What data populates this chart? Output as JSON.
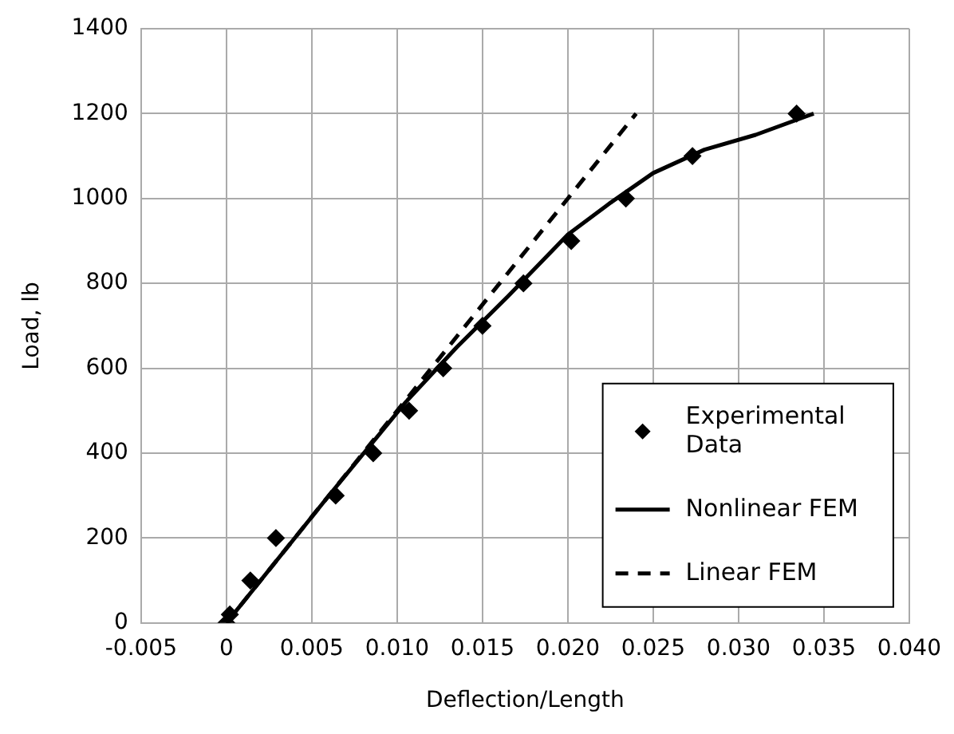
{
  "chart_data": {
    "type": "scatter",
    "xlabel": "Deflection/Length",
    "ylabel": "Load, lb",
    "xlim": [
      -0.005,
      0.04
    ],
    "xticks": [
      {
        "value": -0.005,
        "label": "-0.005"
      },
      {
        "value": 0,
        "label": "0"
      },
      {
        "value": 0.005,
        "label": "0.005"
      },
      {
        "value": 0.01,
        "label": "0.010"
      },
      {
        "value": 0.015,
        "label": "0.015"
      },
      {
        "value": 0.02,
        "label": "0.020"
      },
      {
        "value": 0.025,
        "label": "0.025"
      },
      {
        "value": 0.03,
        "label": "0.030"
      },
      {
        "value": 0.035,
        "label": "0.035"
      },
      {
        "value": 0.04,
        "label": "0.040"
      }
    ],
    "ylim": [
      0,
      1400
    ],
    "yticks": [
      0,
      200,
      400,
      600,
      800,
      1000,
      1200,
      1400
    ],
    "grid": true,
    "legend": "bottom right",
    "series": [
      {
        "name": "Experimental Data",
        "type": "scatter",
        "marker": "diamond",
        "color": "#000000",
        "x": [
          0,
          0.0002,
          0.0014,
          0.0029,
          0.0064,
          0.0086,
          0.0107,
          0.0127,
          0.015,
          0.0174,
          0.0202,
          0.0234,
          0.0273,
          0.0334
        ],
        "values": [
          0,
          20,
          100,
          200,
          300,
          400,
          500,
          600,
          700,
          800,
          900,
          1000,
          1100,
          1200
        ]
      },
      {
        "name": "Nonlinear FEM",
        "type": "line",
        "marker": "none",
        "line_style": "solid",
        "color": "#000000",
        "x": [
          0,
          0.006,
          0.0105,
          0.0135,
          0.0165,
          0.02,
          0.0225,
          0.025,
          0.028,
          0.031,
          0.0344
        ],
        "values": [
          0,
          300,
          520,
          650,
          770,
          915,
          990,
          1060,
          1115,
          1150,
          1200
        ]
      },
      {
        "name": "Linear FEM",
        "type": "line",
        "marker": "none",
        "line_style": "dashed",
        "color": "#000000",
        "x": [
          0,
          0.024
        ],
        "values": [
          0,
          1200
        ]
      }
    ]
  }
}
